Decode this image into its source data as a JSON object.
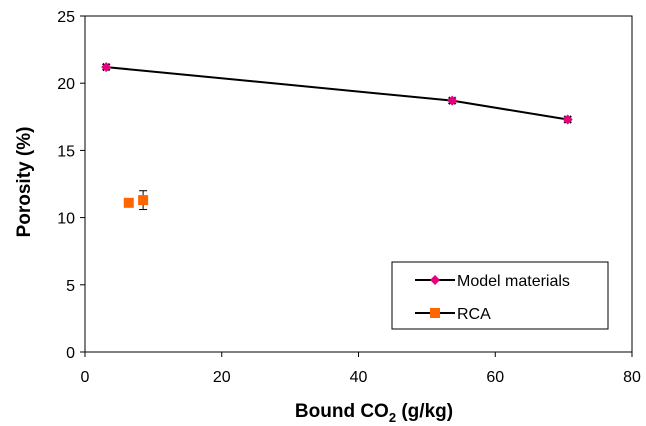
{
  "chart_data": {
    "type": "scatter",
    "xlabel": "Bound CO",
    "xlabel_sub": "2",
    "xlabel_suffix": " (g/kg)",
    "ylabel": "Porosity (%)",
    "xlim": [
      0,
      80
    ],
    "ylim": [
      0,
      25
    ],
    "xticks": [
      0,
      20,
      40,
      60,
      80
    ],
    "yticks": [
      0,
      5,
      10,
      15,
      20,
      25
    ],
    "grid": false,
    "legend_position": "bottom-right",
    "series": [
      {
        "name": "Model materials",
        "marker": "diamond",
        "color": "#e6007e",
        "line": true,
        "points": [
          {
            "x": 3.1,
            "y": 21.2,
            "xerr": 0.4,
            "yerr": 0.2
          },
          {
            "x": 53.7,
            "y": 18.7,
            "xerr": 0.4,
            "yerr": 0.2
          },
          {
            "x": 70.6,
            "y": 17.3,
            "xerr": 0.4,
            "yerr": 0.2
          }
        ]
      },
      {
        "name": "RCA",
        "marker": "square",
        "color": "#ff6600",
        "line": false,
        "points": [
          {
            "x": 6.4,
            "y": 11.1,
            "xerr": 0.3,
            "yerr": 0.2
          },
          {
            "x": 8.5,
            "y": 11.3,
            "xerr": 0.4,
            "yerr": 0.7
          }
        ]
      }
    ]
  }
}
